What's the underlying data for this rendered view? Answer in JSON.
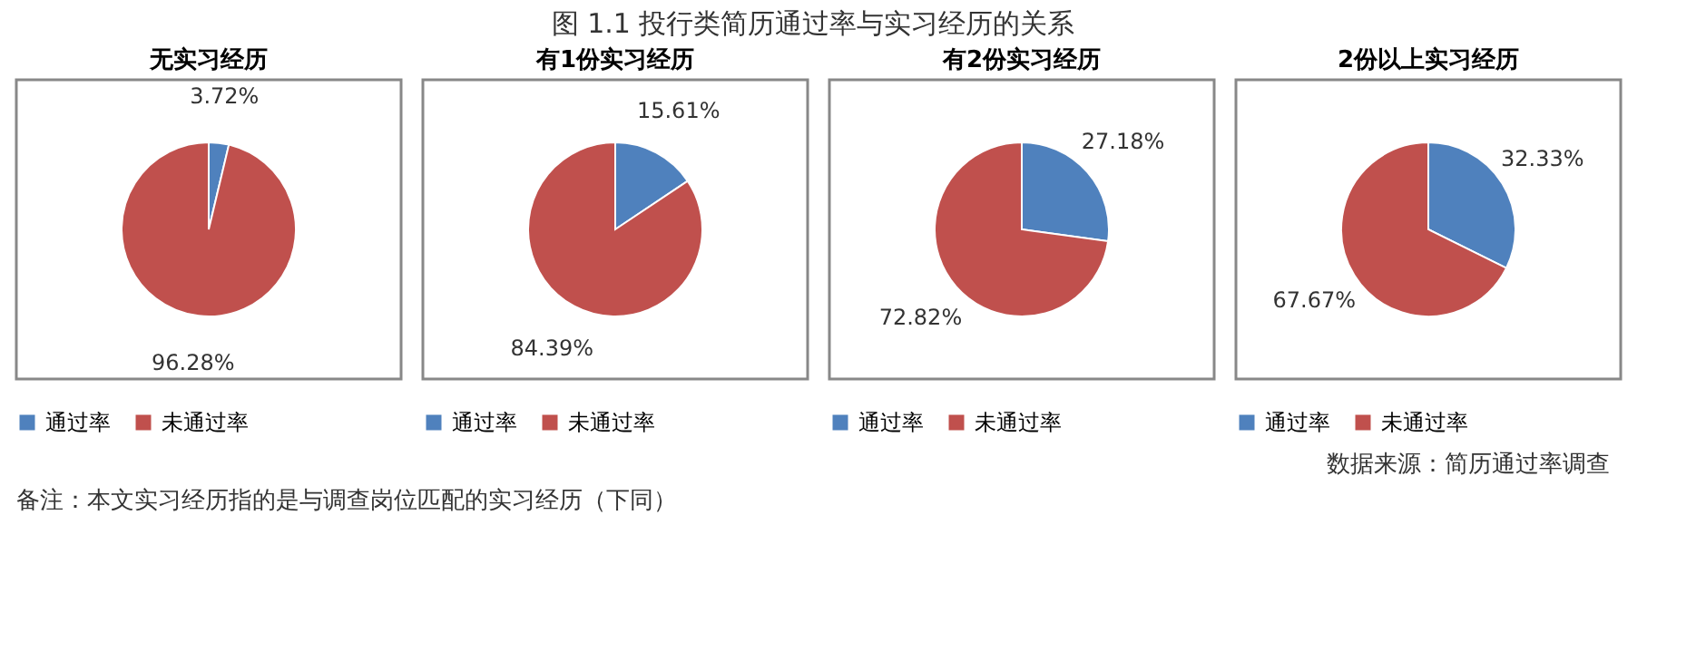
{
  "chart_data": [
    {
      "type": "pie",
      "title": "无实习经历",
      "categories": [
        "通过率",
        "未通过率"
      ],
      "values": [
        3.72,
        96.28
      ],
      "colors": [
        "#4f81bd",
        "#c0504d"
      ],
      "data_labels": true,
      "value_labels": [
        "3.72%",
        "96.28%"
      ],
      "legend": "bottom",
      "annotations": [
        "图 1.1  投行类简历通过率与实习经历的关系"
      ]
    },
    {
      "type": "pie",
      "title": "有1份实习经历",
      "categories": [
        "通过率",
        "未通过率"
      ],
      "values": [
        15.61,
        84.39
      ],
      "colors": [
        "#4f81bd",
        "#c0504d"
      ],
      "data_labels": true,
      "value_labels": [
        "15.61%",
        "84.39%"
      ],
      "legend": "bottom"
    },
    {
      "type": "pie",
      "title": "有2份实习经历",
      "categories": [
        "通过率",
        "未通过率"
      ],
      "values": [
        27.18,
        72.82
      ],
      "colors": [
        "#4f81bd",
        "#c0504d"
      ],
      "data_labels": true,
      "value_labels": [
        "27.18%",
        "72.82%"
      ],
      "legend": "bottom"
    },
    {
      "type": "pie",
      "title": "2份以上实习经历",
      "categories": [
        "通过率",
        "未通过率"
      ],
      "values": [
        32.33,
        67.67
      ],
      "colors": [
        "#4f81bd",
        "#c0504d"
      ],
      "data_labels": true,
      "value_labels": [
        "32.33%",
        "67.67%"
      ],
      "legend": "bottom",
      "annotations": [
        "数据来源：简历通过率调查",
        "备注：本文实习经历指的是与调查岗位匹配的实习经历（下同）"
      ]
    }
  ]
}
